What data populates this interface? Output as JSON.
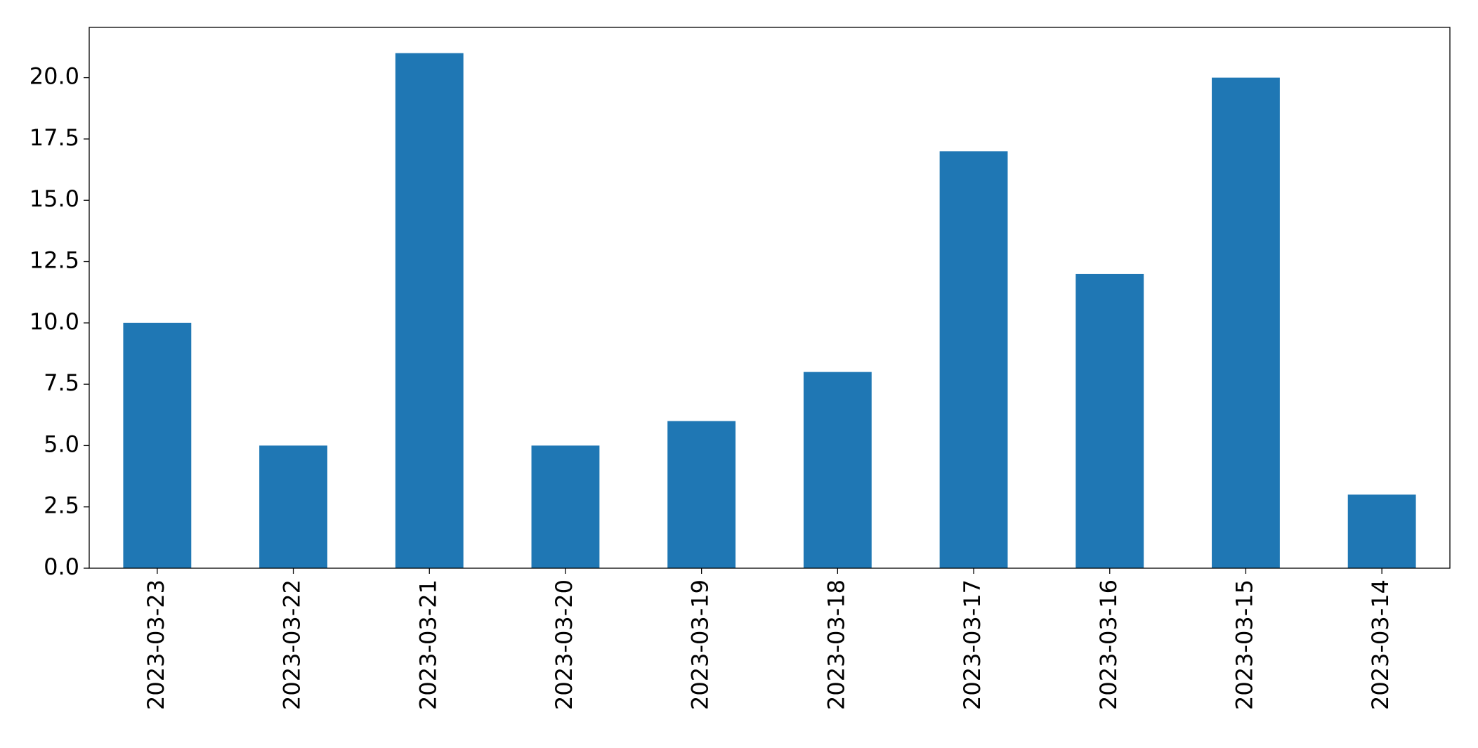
{
  "chart_data": {
    "type": "bar",
    "categories": [
      "2023-03-23",
      "2023-03-22",
      "2023-03-21",
      "2023-03-20",
      "2023-03-19",
      "2023-03-18",
      "2023-03-17",
      "2023-03-16",
      "2023-03-15",
      "2023-03-14"
    ],
    "values": [
      10,
      5,
      21,
      5,
      6,
      8,
      17,
      12,
      20,
      3
    ],
    "color": "#1f77b4",
    "ylim": [
      0,
      22.05
    ],
    "yticks": [
      {
        "value": 0,
        "label": "0.0"
      },
      2.5,
      {
        "value": 5,
        "label": "5.0"
      },
      7.5,
      {
        "value": 10,
        "label": "10.0"
      },
      12.5,
      {
        "value": 15,
        "label": "15.0"
      },
      17.5,
      {
        "value": 20,
        "label": "20.0"
      }
    ],
    "grid": false
  }
}
